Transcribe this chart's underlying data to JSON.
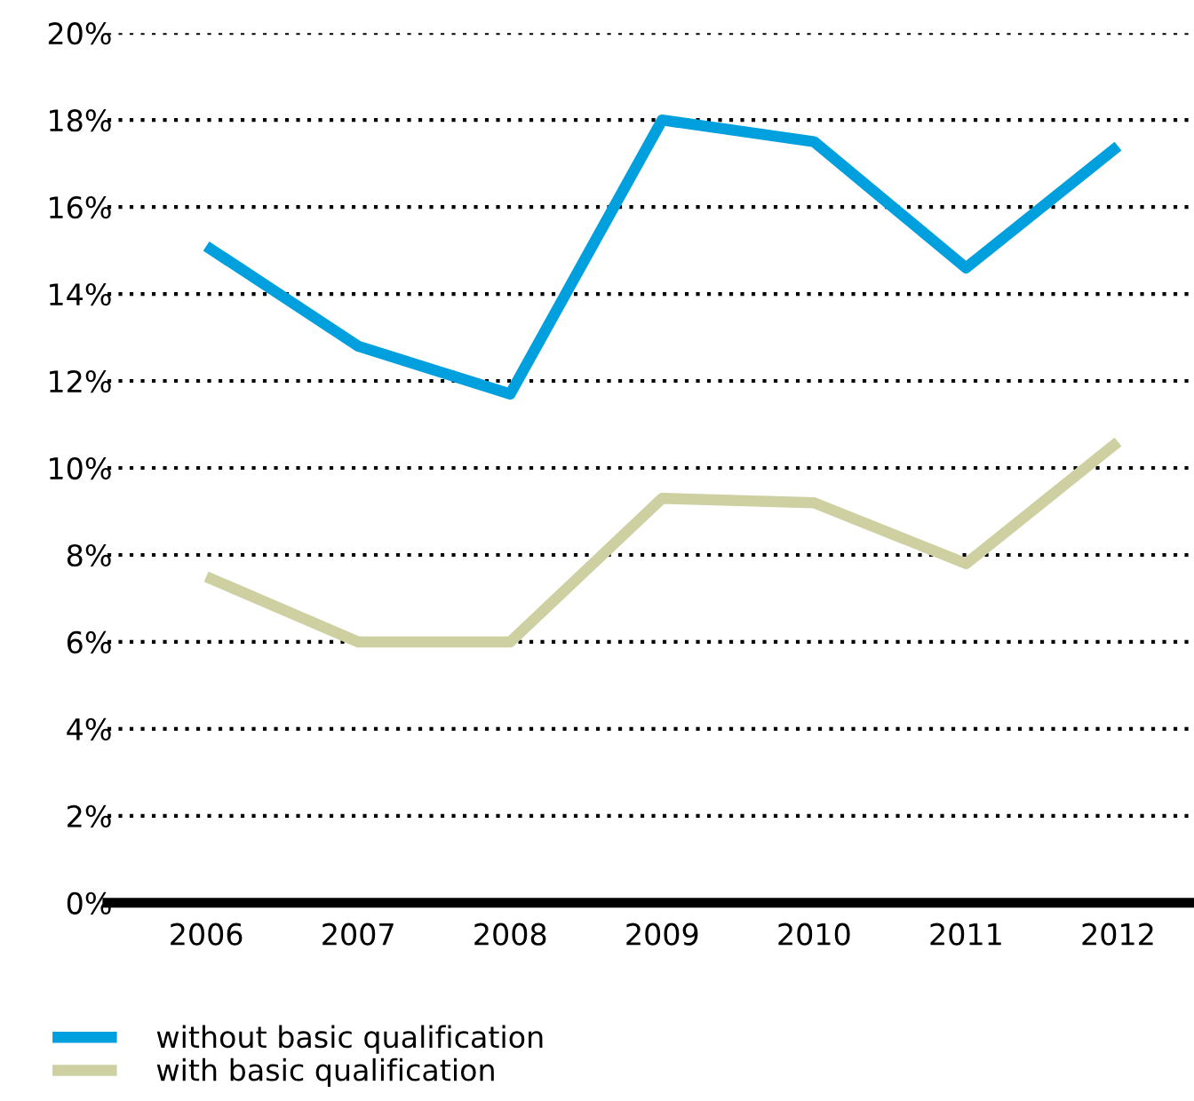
{
  "chart_data": {
    "type": "line",
    "categories": [
      "2006",
      "2007",
      "2008",
      "2009",
      "2010",
      "2011",
      "2012"
    ],
    "series": [
      {
        "name": "without basic qualification",
        "color": "#00a0df",
        "values": [
          15.1,
          12.8,
          11.7,
          18.0,
          17.5,
          14.6,
          17.4
        ]
      },
      {
        "name": "with basic qualification",
        "color": "#cfd0a2",
        "values": [
          7.5,
          6.0,
          6.0,
          9.3,
          9.2,
          7.8,
          10.6
        ]
      }
    ],
    "ylim": [
      0,
      20
    ],
    "yticks": [
      {
        "value": 0,
        "label": "0%"
      },
      {
        "value": 2,
        "label": "2%"
      },
      {
        "value": 4,
        "label": "4%"
      },
      {
        "value": 6,
        "label": "6%"
      },
      {
        "value": 8,
        "label": "8%"
      },
      {
        "value": 10,
        "label": "10%"
      },
      {
        "value": 12,
        "label": "12%"
      },
      {
        "value": 14,
        "label": "14%"
      },
      {
        "value": 16,
        "label": "16%"
      },
      {
        "value": 18,
        "label": "18%"
      },
      {
        "value": 20,
        "label": "20%"
      }
    ],
    "grid": "y",
    "legend": "bottom",
    "marker": "none",
    "line_style": "solid"
  }
}
